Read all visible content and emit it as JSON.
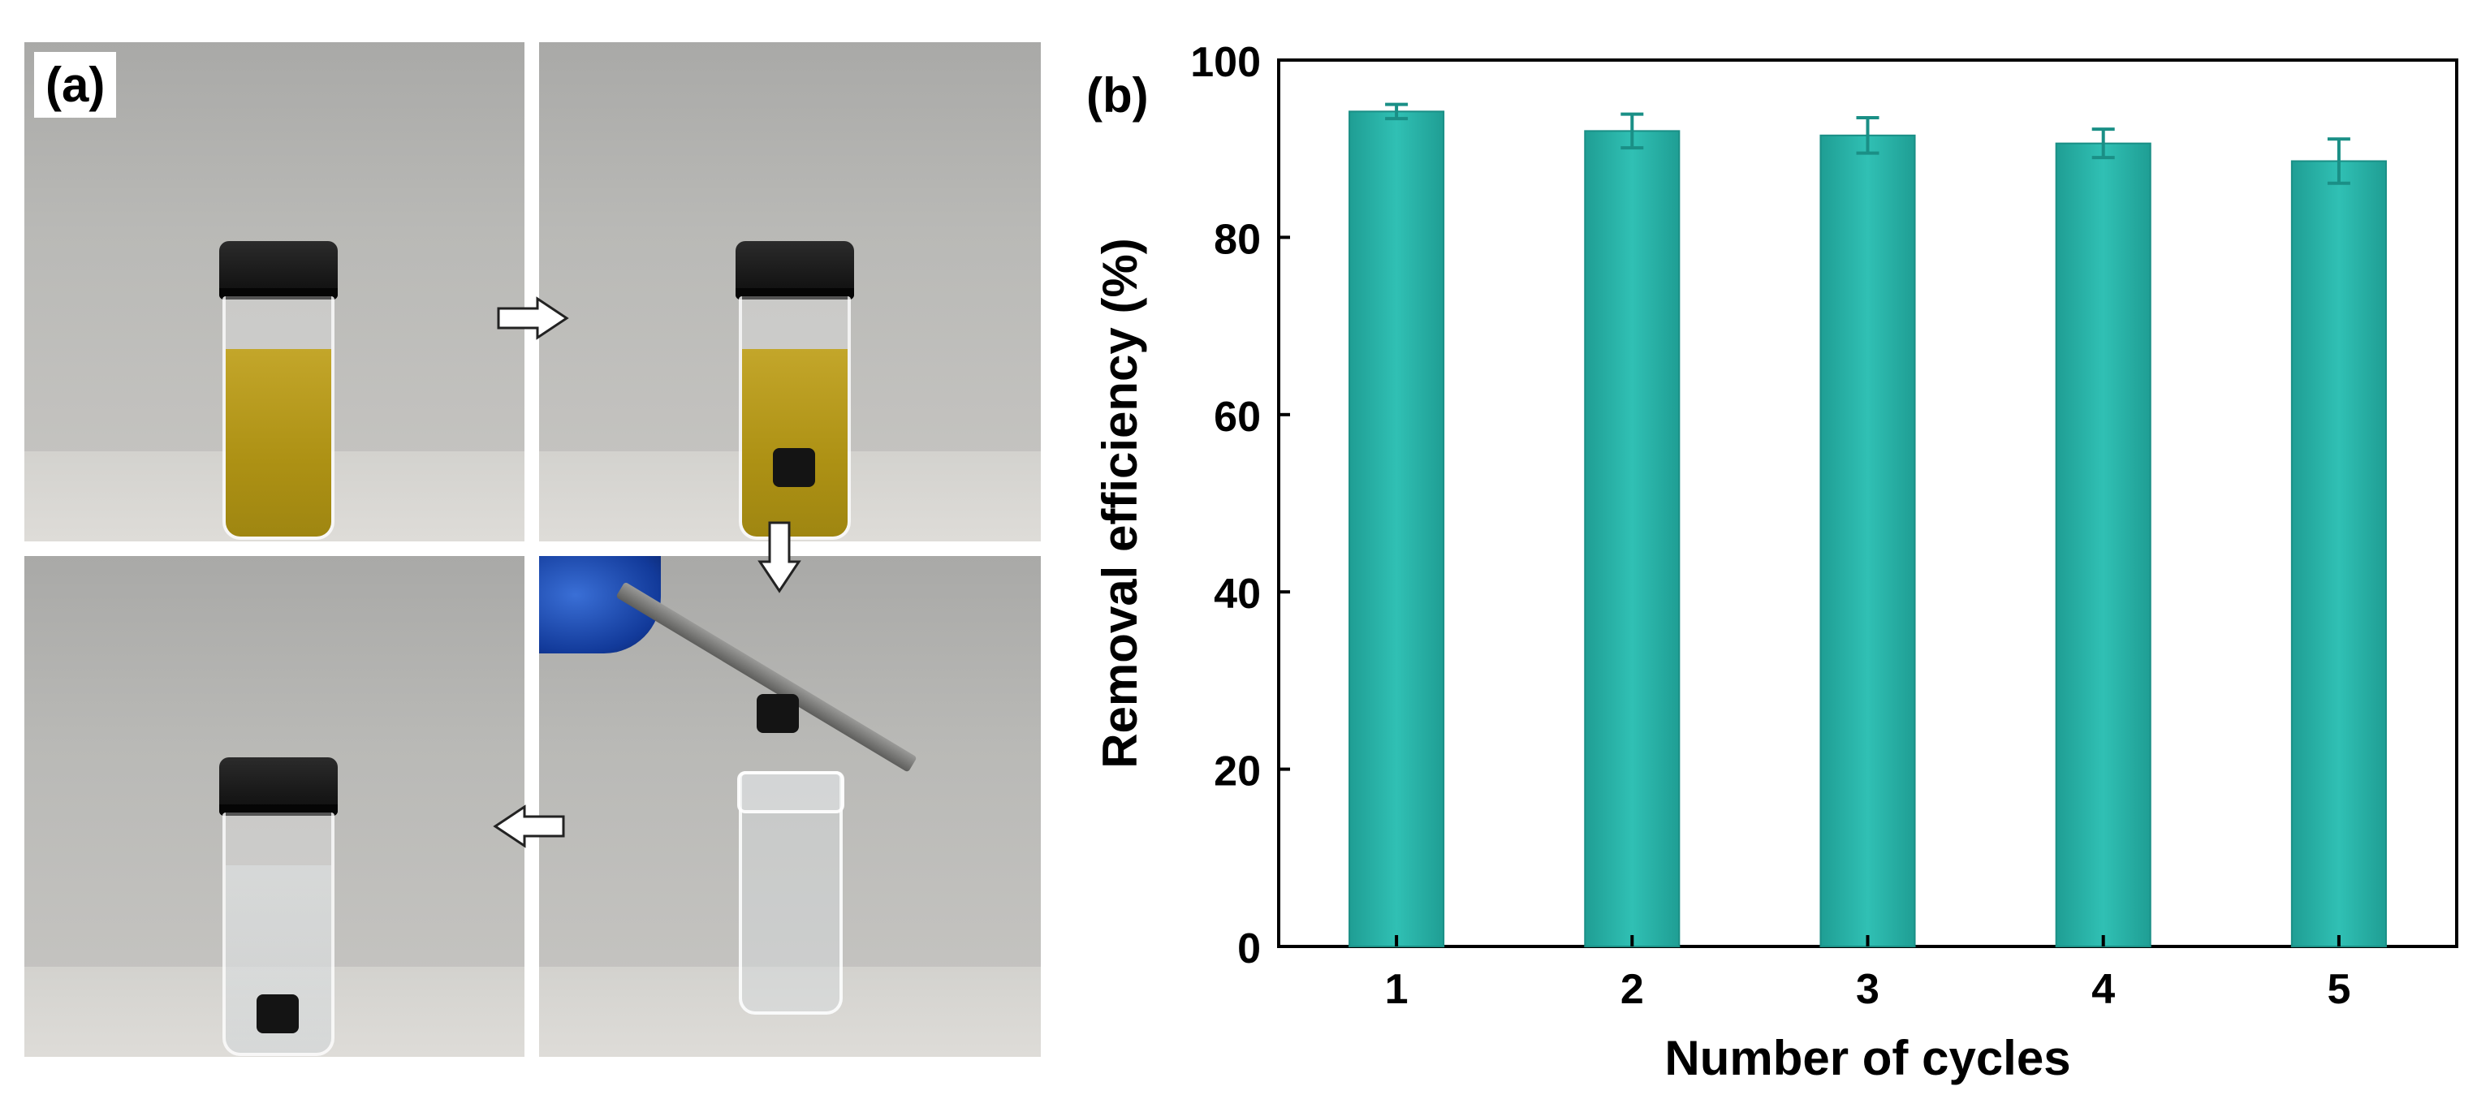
{
  "panel_a": {
    "label": "(a)"
  },
  "panel_b": {
    "label": "(b)"
  },
  "chart_data": {
    "type": "bar",
    "title": "",
    "xlabel": "Number of cycles",
    "ylabel": "Removal efficiency (%)",
    "categories": [
      "1",
      "2",
      "3",
      "4",
      "5"
    ],
    "values": [
      94.2,
      92.0,
      91.5,
      90.6,
      88.6
    ],
    "errors": [
      0.8,
      1.9,
      2.0,
      1.6,
      2.5
    ],
    "ylim": [
      0,
      100
    ],
    "yticks": [
      0,
      20,
      40,
      60,
      80,
      100
    ],
    "grid": false,
    "legend": "none",
    "colors": {
      "bar": "#26b3a8",
      "bar_edge": "#1a8f86",
      "error_bar": "#1a8f86",
      "axis": "#000000"
    }
  }
}
